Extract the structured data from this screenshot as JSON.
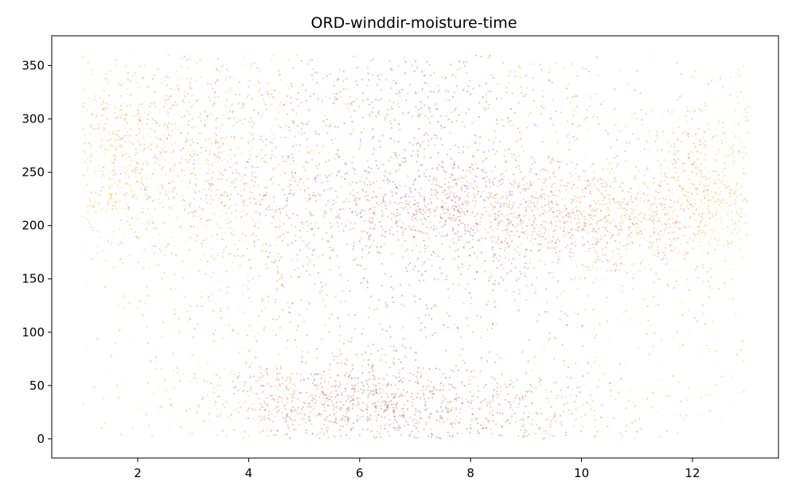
{
  "chart_data": {
    "type": "scatter",
    "title": "ORD-winddir-moisture-time",
    "xlabel": "",
    "ylabel": "",
    "xlim": [
      0.45,
      13.55
    ],
    "ylim": [
      -18,
      378
    ],
    "x_ticks": [
      2,
      4,
      6,
      8,
      10,
      12
    ],
    "y_ticks": [
      0,
      50,
      100,
      150,
      200,
      250,
      300,
      350
    ],
    "grid": false,
    "legend": "none",
    "marker_alpha": 0.3,
    "colormap": [
      "#fcffa4",
      "#f98e09",
      "#bc3754",
      "#57106e"
    ],
    "series": [
      {
        "x_range": [
          1.0,
          13.0
        ],
        "y_range": [
          0,
          360
        ],
        "clusters": [
          {
            "x": 1.5,
            "y": 260,
            "sx": 0.5,
            "sy": 40,
            "weight": 0.09
          },
          {
            "x": 2.5,
            "y": 290,
            "sx": 0.8,
            "sy": 45,
            "weight": 0.07
          },
          {
            "x": 4.0,
            "y": 220,
            "sx": 1.0,
            "sy": 50,
            "weight": 0.07
          },
          {
            "x": 5.5,
            "y": 35,
            "sx": 1.2,
            "sy": 22,
            "weight": 0.12
          },
          {
            "x": 7.5,
            "y": 220,
            "sx": 1.5,
            "sy": 25,
            "weight": 0.12
          },
          {
            "x": 8.5,
            "y": 25,
            "sx": 1.2,
            "sy": 20,
            "weight": 0.06
          },
          {
            "x": 10.3,
            "y": 205,
            "sx": 1.1,
            "sy": 25,
            "weight": 0.12
          },
          {
            "x": 12.3,
            "y": 235,
            "sx": 0.6,
            "sy": 40,
            "weight": 0.11
          },
          {
            "x": 6.5,
            "y": 320,
            "sx": 2.0,
            "sy": 30,
            "weight": 0.06
          },
          {
            "x": 7.0,
            "y": 180,
            "sx": 3.5,
            "sy": 120,
            "weight": 0.18
          }
        ]
      }
    ]
  }
}
